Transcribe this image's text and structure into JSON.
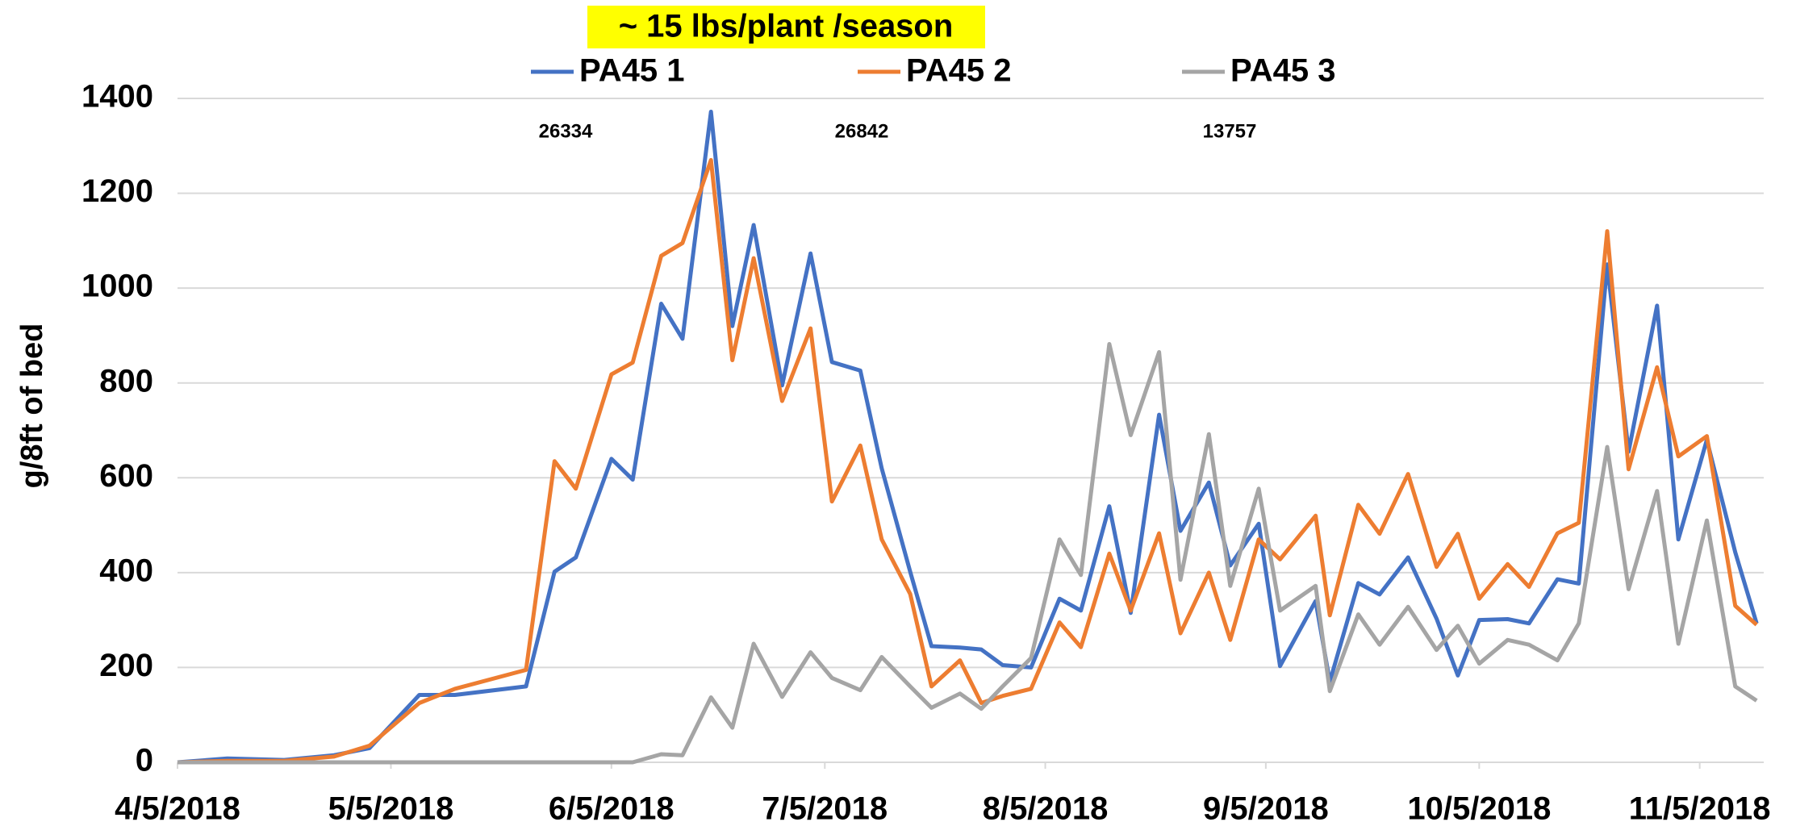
{
  "chart_data": {
    "type": "line",
    "title": "~ 15 lbs/plant /season",
    "y_label": "g/8ft of bed",
    "annotations": [
      "26334",
      "26842",
      "13757"
    ],
    "x": [
      "4/5/2018",
      "4/12/2018",
      "4/20/2018",
      "4/27/2018",
      "5/2/2018",
      "5/9/2018",
      "5/14/2018",
      "5/24/2018",
      "5/28/2018",
      "5/31/2018",
      "6/5/2018",
      "6/8/2018",
      "6/12/2018",
      "6/15/2018",
      "6/19/2018",
      "6/22/2018",
      "6/25/2018",
      "6/29/2018",
      "7/3/2018",
      "7/6/2018",
      "7/10/2018",
      "7/13/2018",
      "7/17/2018",
      "7/20/2018",
      "7/24/2018",
      "7/27/2018",
      "7/30/2018",
      "8/3/2018",
      "8/7/2018",
      "8/10/2018",
      "8/14/2018",
      "8/17/2018",
      "8/21/2018",
      "8/24/2018",
      "8/28/2018",
      "8/31/2018",
      "9/4/2018",
      "9/7/2018",
      "9/12/2018",
      "9/14/2018",
      "9/18/2018",
      "9/21/2018",
      "9/25/2018",
      "9/29/2018",
      "10/2/2018",
      "10/5/2018",
      "10/9/2018",
      "10/12/2018",
      "10/16/2018",
      "10/19/2018",
      "10/23/2018",
      "10/26/2018",
      "10/30/2018",
      "11/2/2018",
      "11/6/2018",
      "11/10/2018",
      "11/13/2018"
    ],
    "series": [
      {
        "name": "PA45 1",
        "color": "#4472c4",
        "values": [
          0,
          8,
          5,
          15,
          30,
          142,
          142,
          160,
          402,
          432,
          640,
          596,
          967,
          893,
          1372,
          920,
          1133,
          795,
          1073,
          844,
          826,
          620,
          402,
          245,
          242,
          238,
          205,
          200,
          345,
          320,
          540,
          315,
          733,
          488,
          590,
          415,
          503,
          203,
          340,
          170,
          378,
          354,
          432,
          303,
          183,
          300,
          302,
          293,
          386,
          377,
          1050,
          655,
          963,
          470,
          680,
          443,
          293
        ]
      },
      {
        "name": "PA45 2",
        "color": "#ed7d31",
        "values": [
          0,
          3,
          3,
          12,
          35,
          125,
          155,
          195,
          635,
          577,
          818,
          843,
          1068,
          1095,
          1270,
          848,
          1063,
          762,
          915,
          550,
          668,
          470,
          355,
          160,
          215,
          125,
          140,
          155,
          295,
          243,
          440,
          320,
          483,
          272,
          400,
          258,
          470,
          428,
          520,
          310,
          543,
          482,
          608,
          412,
          482,
          345,
          418,
          370,
          483,
          505,
          1120,
          618,
          833,
          645,
          688,
          330,
          290
        ]
      },
      {
        "name": "PA45 3",
        "color": "#a5a5a5",
        "values": [
          0,
          0,
          0,
          0,
          0,
          0,
          0,
          0,
          0,
          0,
          0,
          0,
          17,
          15,
          137,
          73,
          250,
          138,
          232,
          178,
          152,
          222,
          160,
          115,
          145,
          113,
          160,
          220,
          470,
          395,
          882,
          690,
          865,
          385,
          692,
          372,
          577,
          320,
          372,
          150,
          312,
          248,
          328,
          237,
          288,
          208,
          258,
          248,
          215,
          293,
          665,
          365,
          572,
          250,
          510,
          160,
          130
        ]
      }
    ],
    "xlim": [
      "4/5/2018",
      "11/14/2018"
    ],
    "xticks": [
      "4/5/2018",
      "5/5/2018",
      "6/5/2018",
      "7/5/2018",
      "8/5/2018",
      "9/5/2018",
      "10/5/2018",
      "11/5/2018"
    ],
    "ylim": [
      0,
      1400
    ],
    "yticks": [
      0,
      200,
      400,
      600,
      800,
      1000,
      1200,
      1400
    ],
    "grid": true,
    "legend": "top"
  }
}
